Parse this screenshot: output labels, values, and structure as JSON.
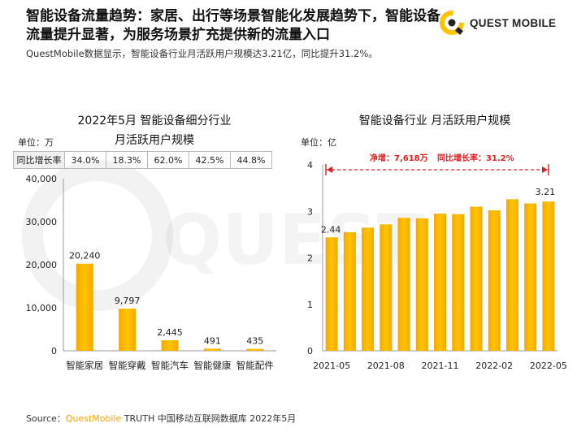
{
  "header": {
    "title": "智能设备流量趋势：家居、出行等场景智能化发展趋势下，智能设备流量提升显著，为服务场景扩充提供新的流量入口",
    "subtitle": "QuestMobile数据显示，智能设备行业月活跃用户规模达3.21亿，同比提升31.2%。",
    "logo_text": "QUEST MOBILE"
  },
  "colors": {
    "bar": "#ffc400",
    "bar_dark": "#f5a800",
    "annotation": "#e02020",
    "axis": "#999999"
  },
  "chart_data": [
    {
      "type": "bar",
      "title_line1": "2022年5月 智能设备细分行业",
      "title_line2": "月活跃用户规模",
      "unit": "单位：万",
      "categories": [
        "智能家居",
        "智能穿戴",
        "智能汽车",
        "智能健康",
        "智能配件"
      ],
      "values": [
        20240,
        9797,
        2445,
        491,
        435
      ],
      "value_labels": [
        "20,240",
        "9,797",
        "2,445",
        "491",
        "435"
      ],
      "yticks": [
        "0",
        "10,000",
        "20,000",
        "30,000",
        "40,000"
      ],
      "ylim": [
        0,
        40000
      ],
      "yoy_label": "同比增长率",
      "yoy": [
        "34.0%",
        "18.3%",
        "62.0%",
        "42.5%",
        "44.8%"
      ]
    },
    {
      "type": "bar",
      "title": "智能设备行业 月活跃用户规模",
      "unit": "单位：亿",
      "x": [
        "2021-05",
        "2021-06",
        "2021-07",
        "2021-08",
        "2021-09",
        "2021-10",
        "2021-11",
        "2021-12",
        "2022-01",
        "2022-02",
        "2022-03",
        "2022-04",
        "2022-05"
      ],
      "xtick_labels": [
        "2021-05",
        "2021-08",
        "2021-11",
        "2022-02",
        "2022-05"
      ],
      "values": [
        2.44,
        2.55,
        2.65,
        2.72,
        2.86,
        2.85,
        2.95,
        2.94,
        3.1,
        3.02,
        3.26,
        3.17,
        3.21
      ],
      "first_label": "2.44",
      "last_label": "3.21",
      "yticks": [
        "0",
        "1",
        "2",
        "3",
        "4"
      ],
      "ylim": [
        0,
        4
      ],
      "annotation_net": "净增：7,618万",
      "annotation_yoy": "同比增长率：31.2%"
    }
  ],
  "footer": {
    "source_prefix": "Source：",
    "source_brand": "QuestMobile",
    "source_rest": " TRUTH 中国移动互联网数据库 2022年5月"
  }
}
